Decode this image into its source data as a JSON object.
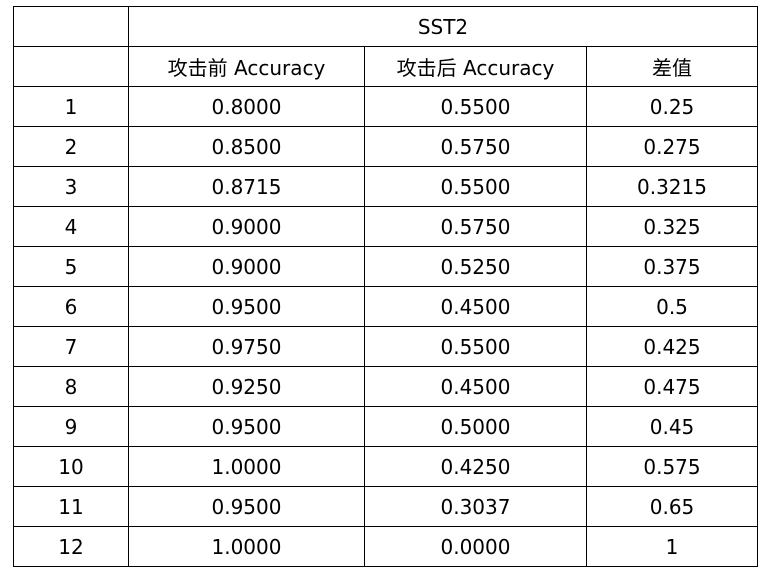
{
  "table": {
    "group_header": "SST2",
    "columns": [
      "",
      "攻击前 Accuracy",
      "攻击后 Accuracy",
      "差值"
    ],
    "rows": [
      [
        "1",
        "0.8000",
        "0.5500",
        "0.25"
      ],
      [
        "2",
        "0.8500",
        "0.5750",
        "0.275"
      ],
      [
        "3",
        "0.8715",
        "0.5500",
        "0.3215"
      ],
      [
        "4",
        "0.9000",
        "0.5750",
        "0.325"
      ],
      [
        "5",
        "0.9000",
        "0.5250",
        "0.375"
      ],
      [
        "6",
        "0.9500",
        "0.4500",
        "0.5"
      ],
      [
        "7",
        "0.9750",
        "0.5500",
        "0.425"
      ],
      [
        "8",
        "0.9250",
        "0.4500",
        "0.475"
      ],
      [
        "9",
        "0.9500",
        "0.5000",
        "0.45"
      ],
      [
        "10",
        "1.0000",
        "0.4250",
        "0.575"
      ],
      [
        "11",
        "0.9500",
        "0.3037",
        "0.65"
      ],
      [
        "12",
        "1.0000",
        "0.0000",
        "1"
      ]
    ]
  }
}
